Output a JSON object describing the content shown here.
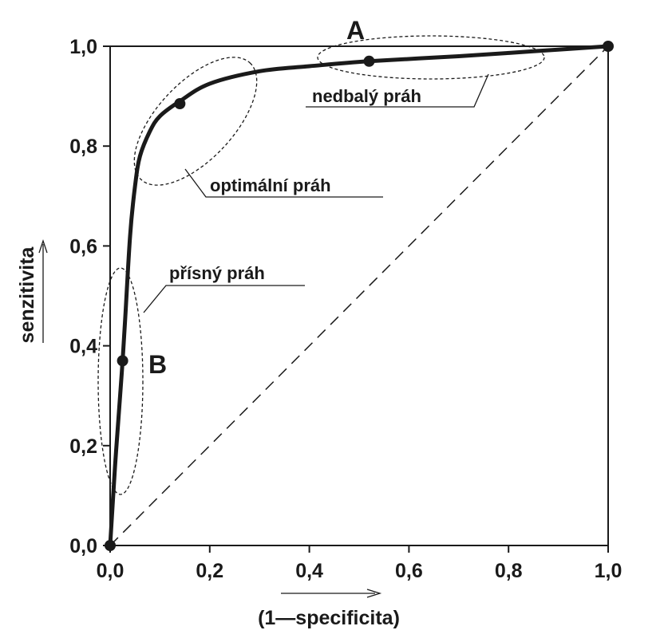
{
  "chart_data": {
    "type": "line",
    "xlabel": "(1—specificita)",
    "ylabel": "senzitivita",
    "xlim": [
      0,
      1
    ],
    "ylim": [
      0,
      1
    ],
    "x_ticks": [
      "0,0",
      "0,2",
      "0,4",
      "0,6",
      "0,8",
      "1,0"
    ],
    "y_ticks": [
      "0,0",
      "0,2",
      "0,4",
      "0,6",
      "0,8",
      "1,0"
    ],
    "grid": false,
    "series": [
      {
        "x": [
          0.0,
          0.01,
          0.02,
          0.025,
          0.03,
          0.04,
          0.05,
          0.06,
          0.08,
          0.1,
          0.14,
          0.2,
          0.3,
          0.4,
          0.52,
          0.7,
          0.85,
          1.0
        ],
        "y": [
          0.0,
          0.16,
          0.3,
          0.37,
          0.45,
          0.62,
          0.72,
          0.78,
          0.83,
          0.86,
          0.89,
          0.925,
          0.95,
          0.96,
          0.97,
          0.98,
          0.99,
          1.0
        ],
        "color": "#1a1a1a"
      }
    ],
    "reference_line": {
      "x": [
        0,
        1
      ],
      "y": [
        0,
        1
      ],
      "style": "dashed"
    },
    "points": [
      {
        "x": 0.0,
        "y": 0.0
      },
      {
        "x": 0.025,
        "y": 0.37
      },
      {
        "x": 0.14,
        "y": 0.885
      },
      {
        "x": 0.52,
        "y": 0.97
      },
      {
        "x": 1.0,
        "y": 1.0
      }
    ],
    "annotations": {
      "point_a": "A",
      "point_b": "B",
      "nedbaly_prah": "nedbalý práh",
      "optimalni_prah": "optimální práh",
      "prisny_prah": "přísný práh"
    }
  }
}
